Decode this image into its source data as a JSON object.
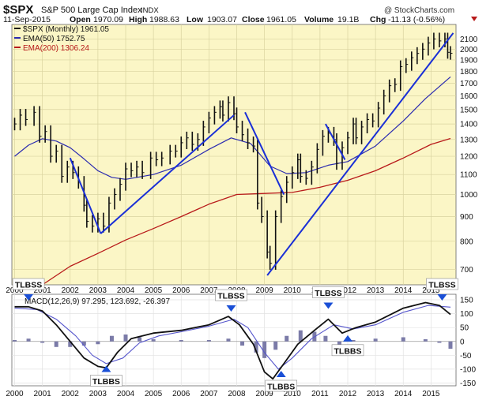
{
  "header": {
    "symbol": "$SPX",
    "name": "S&P 500 Large Cap Index",
    "exchange": "INDX",
    "watermark": "@ StockCharts.com",
    "date": "11-Sep-2015",
    "open_label": "Open",
    "open": "1970.09",
    "high_label": "High",
    "high": "1988.63",
    "low_label": "Low",
    "low": "1903.07",
    "close_label": "Close",
    "close": "1961.05",
    "volume_label": "Volume",
    "volume": "19.1B",
    "chg_label": "Chg",
    "chg": "-11.13 (-0.56%)"
  },
  "legend": {
    "price": "$SPX (Monthly) 1961.05",
    "ema50": "EMA(50) 1752.75",
    "ema200": "EMA(200) 1306.24",
    "macd": "MACD(12,26,9) 97.295, 123.692, -26.397"
  },
  "colors": {
    "panel_bg": "#fbf6c6",
    "price_bars": "#111111",
    "ema50": "#2b2bb0",
    "ema200": "#b81a1a",
    "trendline": "#1a2fd6",
    "macd": "#111111",
    "signal": "#5555cc",
    "histogram": "#7b7ba8",
    "arrow": "#1a4fd6"
  },
  "chart_data": [
    {
      "type": "line",
      "title": "$SPX S&P 500 Large Cap Index INDX",
      "scale": "log",
      "ylim": [
        650,
        2250
      ],
      "yticks": [
        700,
        800,
        900,
        1000,
        1100,
        1200,
        1300,
        1400,
        1500,
        1600,
        1700,
        1800,
        1900,
        2000,
        2100
      ],
      "xlim": [
        1999.9,
        2015.9
      ],
      "xticks": [
        "2000",
        "2001",
        "2002",
        "2003",
        "2004",
        "2005",
        "2006",
        "2007",
        "2008",
        "2009",
        "2010",
        "2011",
        "2012",
        "2013",
        "2014",
        "2015"
      ],
      "grid": true,
      "legend_position": "top-left",
      "series": [
        {
          "name": "$SPX (Monthly) 1961.05",
          "style": "bars",
          "points": [
            [
              2000.0,
              1400
            ],
            [
              2000.2,
              1460
            ],
            [
              2000.4,
              1430
            ],
            [
              2000.7,
              1480
            ],
            [
              2000.9,
              1320
            ],
            [
              2001.1,
              1350
            ],
            [
              2001.3,
              1200
            ],
            [
              2001.5,
              1230
            ],
            [
              2001.7,
              1090
            ],
            [
              2001.9,
              1140
            ],
            [
              2002.1,
              1110
            ],
            [
              2002.3,
              1060
            ],
            [
              2002.5,
              950
            ],
            [
              2002.6,
              880
            ],
            [
              2002.8,
              860
            ],
            [
              2003.0,
              890
            ],
            [
              2003.2,
              860
            ],
            [
              2003.4,
              960
            ],
            [
              2003.6,
              1000
            ],
            [
              2003.8,
              1050
            ],
            [
              2004.0,
              1130
            ],
            [
              2004.2,
              1120
            ],
            [
              2004.4,
              1140
            ],
            [
              2004.6,
              1110
            ],
            [
              2004.9,
              1190
            ],
            [
              2005.1,
              1180
            ],
            [
              2005.3,
              1190
            ],
            [
              2005.6,
              1230
            ],
            [
              2005.8,
              1230
            ],
            [
              2006.0,
              1280
            ],
            [
              2006.2,
              1310
            ],
            [
              2006.4,
              1270
            ],
            [
              2006.6,
              1300
            ],
            [
              2006.8,
              1380
            ],
            [
              2007.0,
              1440
            ],
            [
              2007.2,
              1480
            ],
            [
              2007.4,
              1520
            ],
            [
              2007.5,
              1460
            ],
            [
              2007.7,
              1550
            ],
            [
              2007.9,
              1470
            ],
            [
              2008.0,
              1380
            ],
            [
              2008.2,
              1330
            ],
            [
              2008.4,
              1280
            ],
            [
              2008.6,
              1260
            ],
            [
              2008.75,
              960
            ],
            [
              2008.9,
              900
            ],
            [
              2009.1,
              760
            ],
            [
              2009.2,
              720
            ],
            [
              2009.4,
              900
            ],
            [
              2009.6,
              990
            ],
            [
              2009.8,
              1060
            ],
            [
              2010.0,
              1110
            ],
            [
              2010.2,
              1180
            ],
            [
              2010.3,
              1090
            ],
            [
              2010.5,
              1080
            ],
            [
              2010.7,
              1140
            ],
            [
              2010.9,
              1240
            ],
            [
              2011.1,
              1320
            ],
            [
              2011.3,
              1340
            ],
            [
              2011.5,
              1300
            ],
            [
              2011.6,
              1160
            ],
            [
              2011.8,
              1250
            ],
            [
              2012.0,
              1310
            ],
            [
              2012.2,
              1400
            ],
            [
              2012.3,
              1310
            ],
            [
              2012.5,
              1380
            ],
            [
              2012.7,
              1430
            ],
            [
              2012.9,
              1420
            ],
            [
              2013.1,
              1510
            ],
            [
              2013.3,
              1600
            ],
            [
              2013.5,
              1680
            ],
            [
              2013.7,
              1690
            ],
            [
              2013.9,
              1840
            ],
            [
              2014.1,
              1860
            ],
            [
              2014.3,
              1920
            ],
            [
              2014.5,
              1960
            ],
            [
              2014.7,
              2000
            ],
            [
              2014.9,
              2060
            ],
            [
              2015.1,
              2100
            ],
            [
              2015.3,
              2080
            ],
            [
              2015.5,
              2100
            ],
            [
              2015.6,
              1970
            ],
            [
              2015.7,
              1961
            ]
          ]
        },
        {
          "name": "EMA(50) 1752.75",
          "points": [
            [
              2000.0,
              1200
            ],
            [
              2000.5,
              1265
            ],
            [
              2001.0,
              1305
            ],
            [
              2001.5,
              1290
            ],
            [
              2002.0,
              1250
            ],
            [
              2002.5,
              1185
            ],
            [
              2003.0,
              1120
            ],
            [
              2003.5,
              1085
            ],
            [
              2004.0,
              1075
            ],
            [
              2005.0,
              1100
            ],
            [
              2006.0,
              1150
            ],
            [
              2007.0,
              1240
            ],
            [
              2007.8,
              1310
            ],
            [
              2008.5,
              1275
            ],
            [
              2009.2,
              1145
            ],
            [
              2009.8,
              1105
            ],
            [
              2010.5,
              1110
            ],
            [
              2011.3,
              1150
            ],
            [
              2012.0,
              1170
            ],
            [
              2013.0,
              1260
            ],
            [
              2014.0,
              1420
            ],
            [
              2014.8,
              1580
            ],
            [
              2015.7,
              1752.75
            ]
          ]
        },
        {
          "name": "EMA(200) 1306.24",
          "points": [
            [
              2000.0,
              585
            ],
            [
              2001.0,
              650
            ],
            [
              2002.0,
              710
            ],
            [
              2003.0,
              755
            ],
            [
              2004.0,
              805
            ],
            [
              2005.0,
              850
            ],
            [
              2006.0,
              900
            ],
            [
              2007.0,
              955
            ],
            [
              2008.0,
              1000
            ],
            [
              2009.0,
              1005
            ],
            [
              2010.0,
              1010
            ],
            [
              2011.0,
              1035
            ],
            [
              2012.0,
              1070
            ],
            [
              2013.0,
              1120
            ],
            [
              2014.0,
              1190
            ],
            [
              2015.0,
              1270
            ],
            [
              2015.7,
              1306.24
            ]
          ]
        }
      ],
      "trendlines": [
        [
          [
            2002.0,
            1190
          ],
          [
            2003.1,
            830
          ]
        ],
        [
          [
            2003.1,
            830
          ],
          [
            2007.9,
            1460
          ]
        ],
        [
          [
            2008.3,
            1480
          ],
          [
            2009.7,
            1000
          ]
        ],
        [
          [
            2009.1,
            680
          ],
          [
            2015.8,
            2160
          ]
        ],
        [
          [
            2011.2,
            1400
          ],
          [
            2011.9,
            1180
          ]
        ]
      ]
    },
    {
      "type": "line",
      "title": "MACD(12,26,9) 97.295, 123.692, -26.397",
      "ylim": [
        -160,
        170
      ],
      "yticks": [
        -150,
        -100,
        -50,
        0,
        50,
        100,
        150
      ],
      "xlim": [
        1999.9,
        2015.9
      ],
      "xticks": [
        "2000",
        "2001",
        "2002",
        "2003",
        "2004",
        "2005",
        "2006",
        "2007",
        "2008",
        "2009",
        "2010",
        "2011",
        "2012",
        "2013",
        "2014",
        "2015"
      ],
      "legend_position": "top-left",
      "annotations": [
        {
          "text": "TLBSS",
          "x": 2000.5,
          "y": 170
        },
        {
          "text": "TLBBS",
          "x": 2003.3,
          "y": -150
        },
        {
          "text": "TLBSS",
          "x": 2007.8,
          "y": 130
        },
        {
          "text": "TLBBS",
          "x": 2009.6,
          "y": -170
        },
        {
          "text": "TLBSS",
          "x": 2011.3,
          "y": 140
        },
        {
          "text": "TLBBS",
          "x": 2012.0,
          "y": -40
        },
        {
          "text": "TLBSS",
          "x": 2015.4,
          "y": 170
        }
      ],
      "series": [
        {
          "name": "MACD",
          "points": [
            [
              2000.0,
              125
            ],
            [
              2000.5,
              125
            ],
            [
              2001.0,
              110
            ],
            [
              2001.5,
              60
            ],
            [
              2002.0,
              0
            ],
            [
              2002.5,
              -60
            ],
            [
              2003.0,
              -90
            ],
            [
              2003.3,
              -95
            ],
            [
              2003.7,
              -40
            ],
            [
              2004.2,
              10
            ],
            [
              2005.0,
              30
            ],
            [
              2006.0,
              40
            ],
            [
              2007.0,
              60
            ],
            [
              2007.7,
              90
            ],
            [
              2008.1,
              60
            ],
            [
              2008.6,
              -10
            ],
            [
              2009.0,
              -110
            ],
            [
              2009.3,
              -135
            ],
            [
              2009.7,
              -80
            ],
            [
              2010.2,
              -10
            ],
            [
              2010.8,
              40
            ],
            [
              2011.3,
              80
            ],
            [
              2011.8,
              30
            ],
            [
              2012.3,
              50
            ],
            [
              2013.0,
              70
            ],
            [
              2014.0,
              120
            ],
            [
              2014.8,
              140
            ],
            [
              2015.3,
              130
            ],
            [
              2015.7,
              97.295
            ]
          ]
        },
        {
          "name": "Signal",
          "points": [
            [
              2000.0,
              120
            ],
            [
              2000.8,
              115
            ],
            [
              2001.5,
              80
            ],
            [
              2002.2,
              20
            ],
            [
              2002.8,
              -50
            ],
            [
              2003.3,
              -80
            ],
            [
              2003.9,
              -60
            ],
            [
              2004.5,
              -5
            ],
            [
              2005.2,
              20
            ],
            [
              2006.0,
              35
            ],
            [
              2007.0,
              55
            ],
            [
              2007.9,
              80
            ],
            [
              2008.4,
              50
            ],
            [
              2009.0,
              -40
            ],
            [
              2009.5,
              -100
            ],
            [
              2010.0,
              -60
            ],
            [
              2010.7,
              10
            ],
            [
              2011.5,
              60
            ],
            [
              2012.2,
              45
            ],
            [
              2013.0,
              60
            ],
            [
              2014.0,
              105
            ],
            [
              2014.9,
              130
            ],
            [
              2015.7,
              123.692
            ]
          ]
        },
        {
          "name": "Histogram",
          "style": "bars",
          "points": [
            [
              2000.0,
              5
            ],
            [
              2000.5,
              10
            ],
            [
              2001.0,
              -5
            ],
            [
              2001.5,
              -20
            ],
            [
              2002.0,
              -20
            ],
            [
              2002.5,
              -15
            ],
            [
              2003.0,
              -10
            ],
            [
              2003.5,
              20
            ],
            [
              2004.0,
              25
            ],
            [
              2004.5,
              15
            ],
            [
              2005.0,
              8
            ],
            [
              2006.0,
              5
            ],
            [
              2007.0,
              5
            ],
            [
              2007.7,
              10
            ],
            [
              2008.2,
              -15
            ],
            [
              2008.7,
              -40
            ],
            [
              2009.0,
              -60
            ],
            [
              2009.4,
              -30
            ],
            [
              2009.8,
              20
            ],
            [
              2010.3,
              40
            ],
            [
              2010.8,
              35
            ],
            [
              2011.2,
              20
            ],
            [
              2011.7,
              -30
            ],
            [
              2012.2,
              5
            ],
            [
              2013.0,
              10
            ],
            [
              2014.0,
              15
            ],
            [
              2014.8,
              8
            ],
            [
              2015.3,
              -5
            ],
            [
              2015.7,
              -26.397
            ]
          ]
        }
      ]
    }
  ]
}
